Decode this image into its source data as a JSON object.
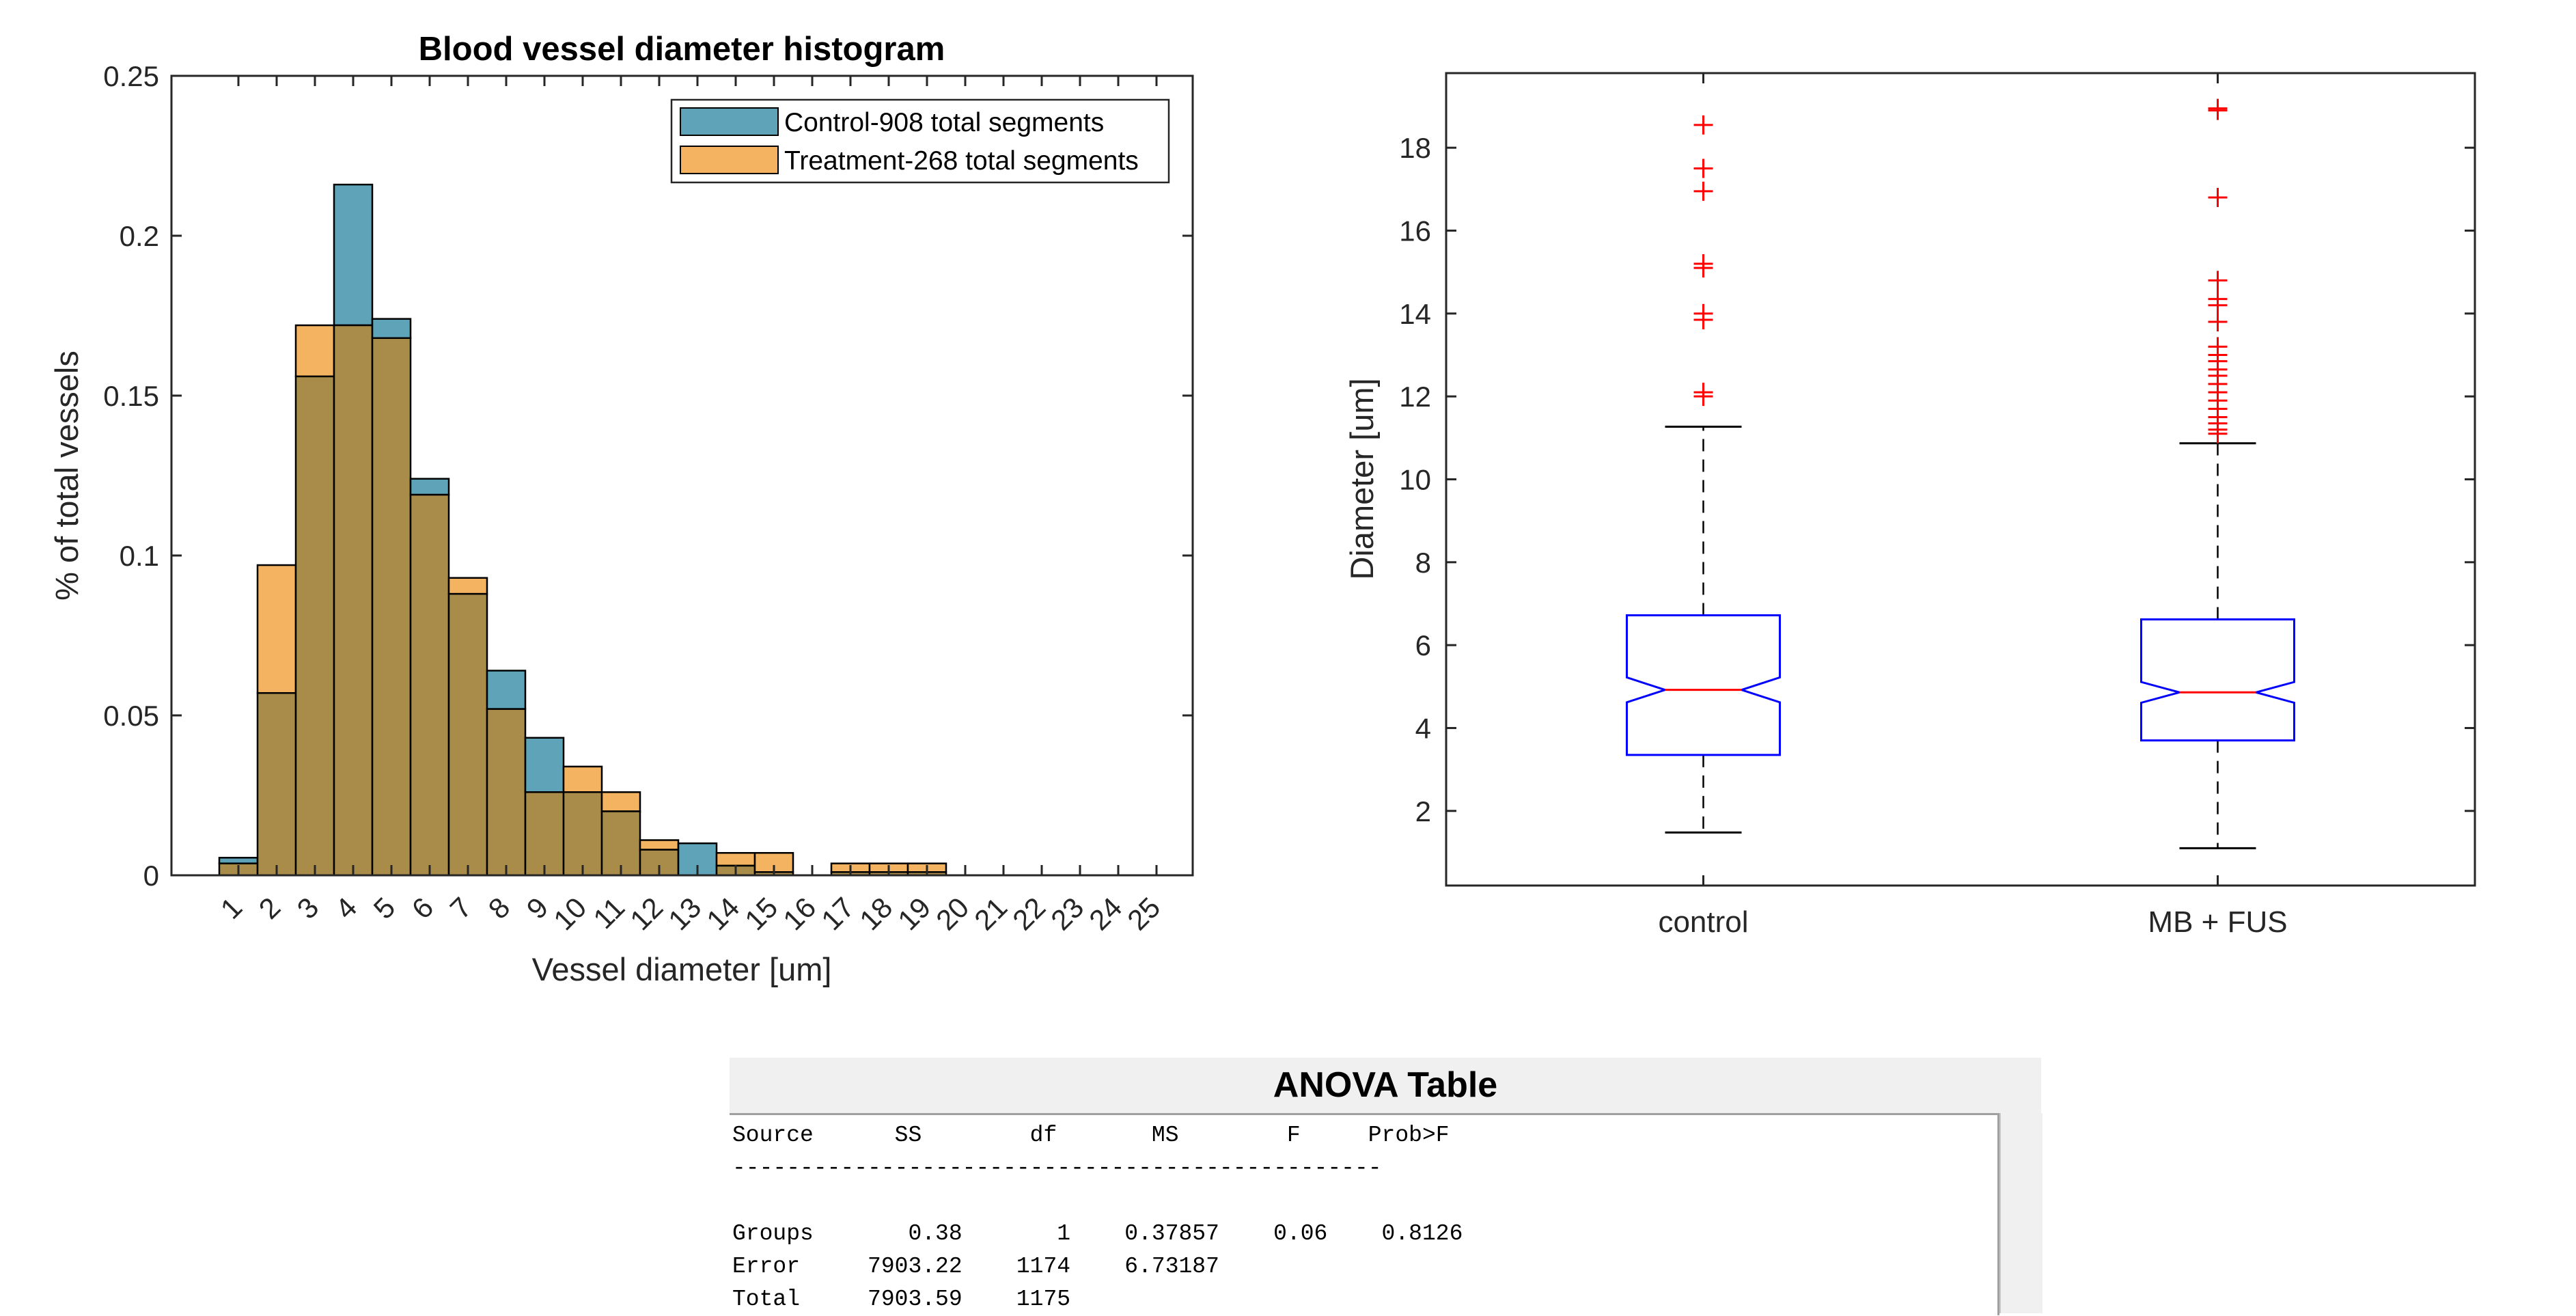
{
  "chart_data": [
    {
      "type": "bar",
      "title": "Blood vessel diameter histogram",
      "xlabel": "Vessel diameter [um]",
      "ylabel": "% of total vessels",
      "ylim": [
        0,
        0.25
      ],
      "yticks": [
        "0",
        "0.05",
        "0.1",
        "0.15",
        "0.2",
        "0.25"
      ],
      "categories": [
        "1",
        "2",
        "3",
        "4",
        "5",
        "6",
        "7",
        "8",
        "9",
        "10",
        "11",
        "12",
        "13",
        "14",
        "15",
        "16",
        "17",
        "18",
        "19",
        "20",
        "21",
        "22",
        "23",
        "24",
        "25"
      ],
      "legend_position": "top-right",
      "series": [
        {
          "name": "Control-908 total segments",
          "color": "#0072BD",
          "values": [
            0.0055,
            0.057,
            0.156,
            0.216,
            0.174,
            0.124,
            0.088,
            0.064,
            0.043,
            0.026,
            0.02,
            0.008,
            0.01,
            0.003,
            0.001,
            0,
            0.001,
            0.001,
            0.001,
            0,
            0,
            0,
            0,
            0,
            0
          ]
        },
        {
          "name": "Treatment-268 total segments",
          "color": "#EDB120",
          "values": [
            0.0037,
            0.097,
            0.172,
            0.172,
            0.168,
            0.119,
            0.093,
            0.052,
            0.026,
            0.034,
            0.026,
            0.011,
            0,
            0.007,
            0.007,
            0,
            0.0037,
            0.0037,
            0.0037,
            0,
            0,
            0,
            0,
            0,
            0
          ]
        }
      ],
      "colors": {
        "control": "#5EA3B7",
        "treatment": "#F3B361",
        "overlap": "#A98C4A"
      },
      "grid": false
    },
    {
      "type": "box",
      "xlabel": "",
      "ylabel": "Diameter [um]",
      "ylim": [
        0.2,
        19.8
      ],
      "yticks": [
        "2",
        "4",
        "6",
        "8",
        "10",
        "12",
        "14",
        "16",
        "18"
      ],
      "categories": [
        "control",
        "MB + FUS"
      ],
      "notched": true,
      "colors": {
        "box": "#0000FF",
        "median": "#FF0000",
        "outlier": "#FF0000",
        "whisker": "#000000"
      },
      "boxes": [
        {
          "q1": 3.35,
          "median": 4.92,
          "q3": 6.72,
          "notch_low": 4.62,
          "notch_high": 5.22,
          "whisker_low": 1.48,
          "whisker_high": 11.27,
          "outliers": [
            12.0,
            12.1,
            13.85,
            14.0,
            15.1,
            15.2,
            16.95,
            17.5,
            18.55
          ]
        },
        {
          "q1": 3.7,
          "median": 4.86,
          "q3": 6.62,
          "notch_low": 4.61,
          "notch_high": 5.11,
          "whisker_low": 1.1,
          "whisker_high": 10.87,
          "outliers": [
            11.1,
            11.2,
            11.35,
            11.5,
            11.7,
            11.9,
            12.1,
            12.3,
            12.5,
            12.65,
            12.85,
            13.0,
            13.2,
            13.8,
            14.2,
            14.35,
            14.8,
            16.8,
            18.9,
            18.95
          ]
        }
      ],
      "grid": false
    }
  ],
  "anova": {
    "title": "ANOVA Table",
    "header": "Source      SS        df       MS        F     Prob>F",
    "separator": "------------------------------------------------",
    "rows": [
      "Groups       0.38       1    0.37857    0.06    0.8126",
      "Error     7903.22    1174    6.73187",
      "Total     7903.59    1175"
    ]
  }
}
